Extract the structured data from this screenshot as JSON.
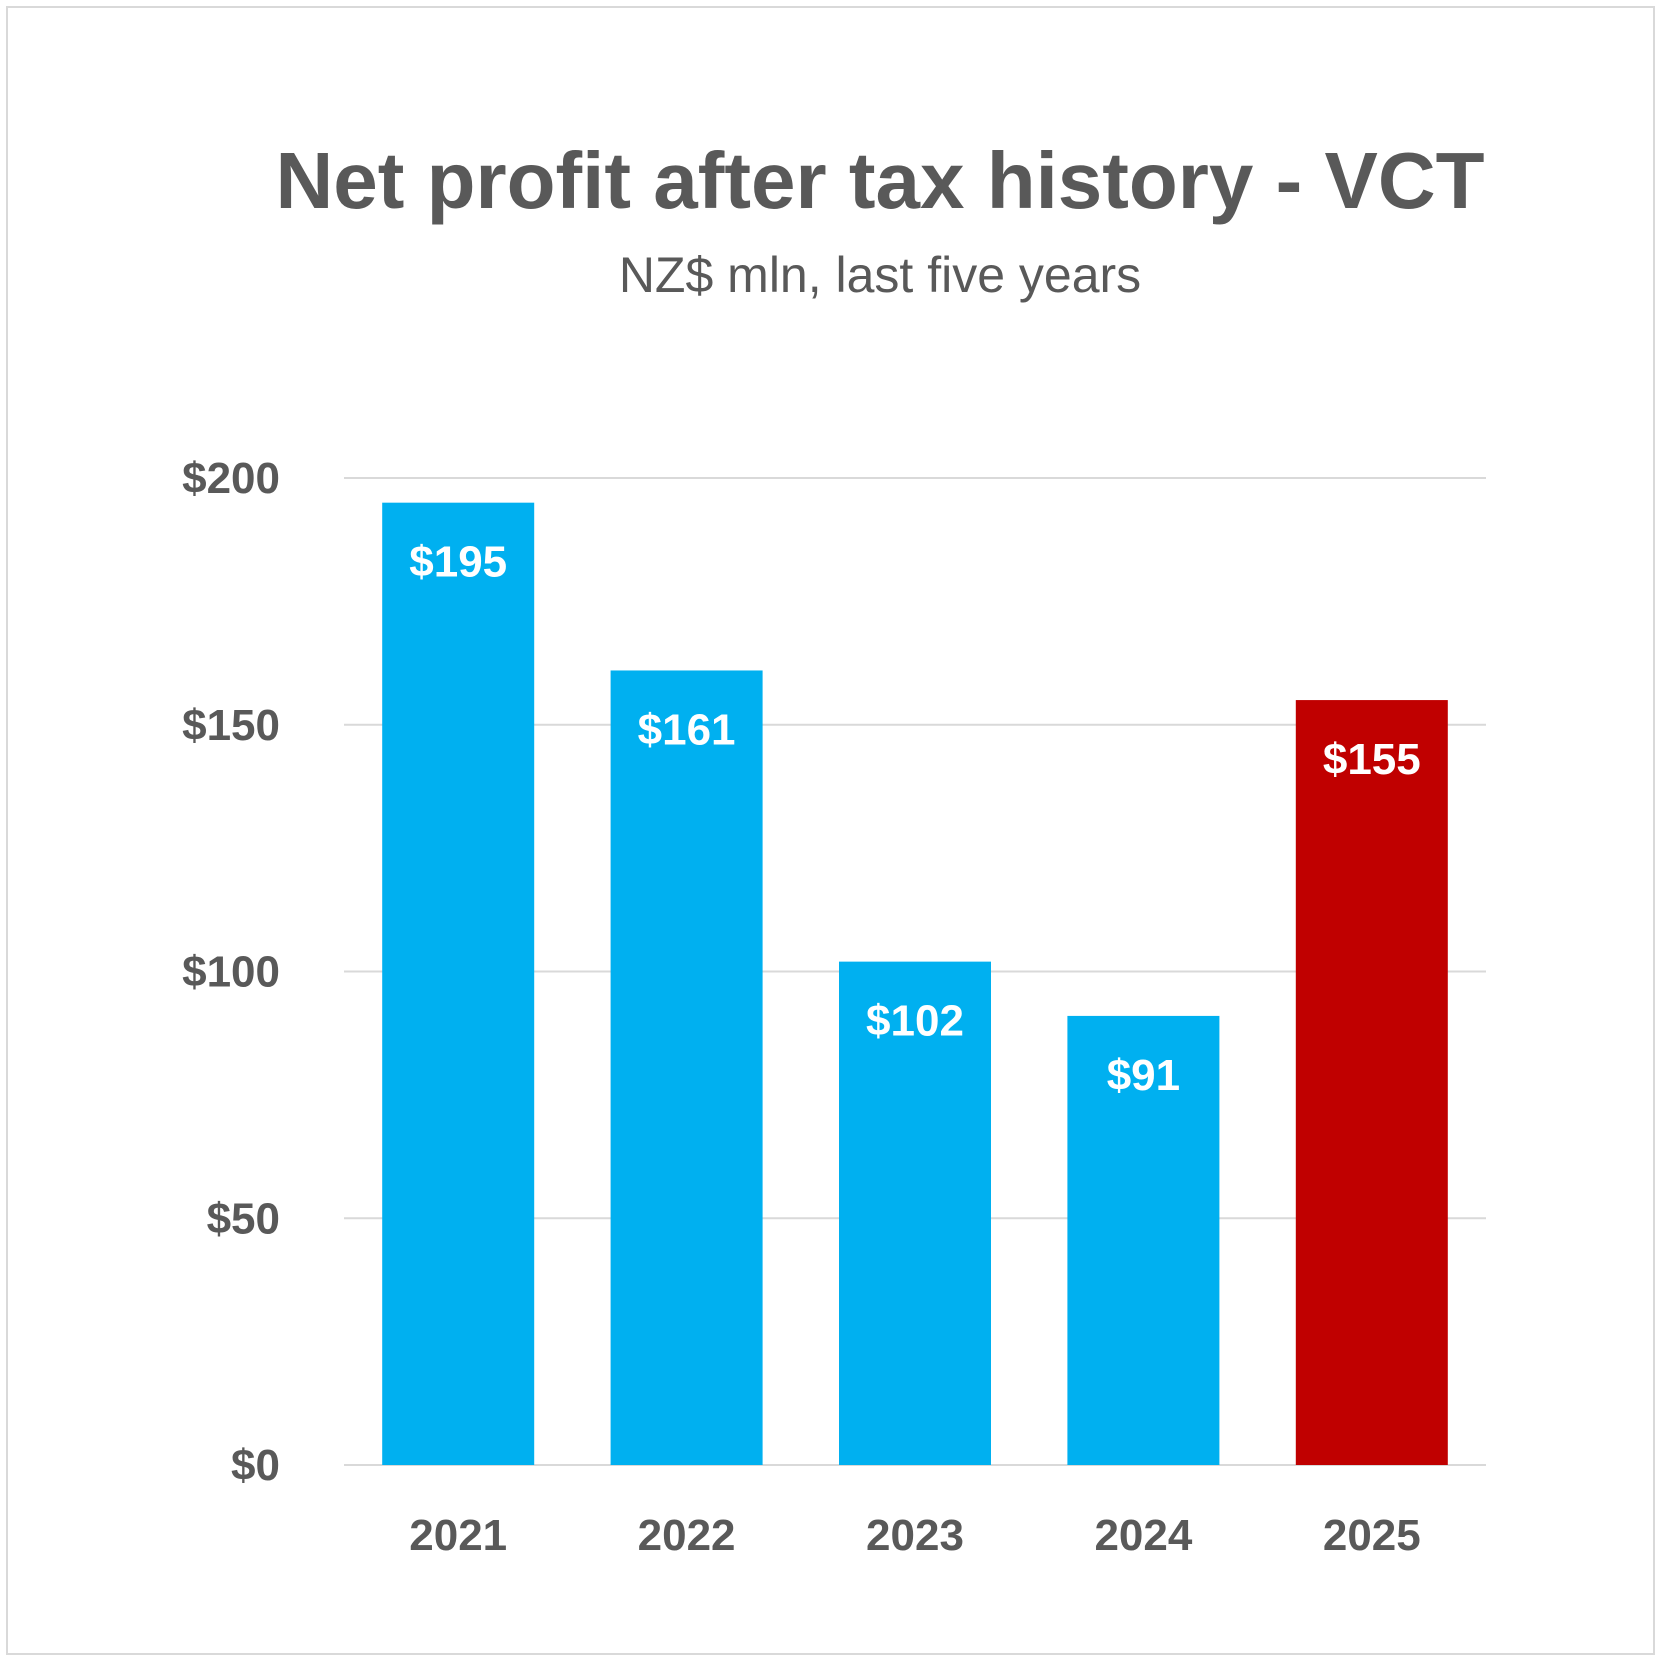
{
  "chart_data": {
    "type": "bar",
    "title": "Net profit after tax history - VCT",
    "subtitle": "NZ$ mln, last five years",
    "categories": [
      "2021",
      "2022",
      "2023",
      "2024",
      "2025"
    ],
    "values": [
      195,
      161,
      102,
      91,
      155
    ],
    "data_labels": [
      "$195",
      "$161",
      "$102",
      "$91",
      "$155"
    ],
    "bar_colors": [
      "#00b0f0",
      "#00b0f0",
      "#00b0f0",
      "#00b0f0",
      "#c00000"
    ],
    "ylim": [
      0,
      200
    ],
    "yticks": [
      0,
      50,
      100,
      150,
      200
    ],
    "ytick_labels": [
      "$0",
      "$50",
      "$100",
      "$150",
      "$200"
    ],
    "xlabel": "",
    "ylabel": "",
    "grid": true,
    "legend": "none"
  }
}
